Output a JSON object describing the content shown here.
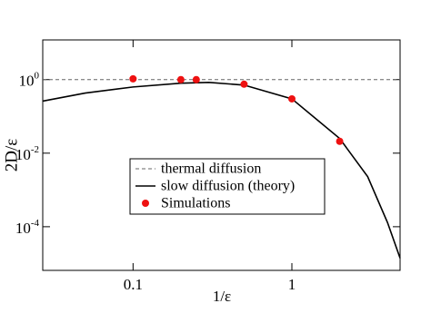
{
  "chart_data": {
    "type": "line",
    "xlabel": "1/ε",
    "ylabel": "2D/ε",
    "xscale": "log",
    "yscale": "log",
    "xlim": [
      0.027,
      4.8
    ],
    "ylim": [
      6.5e-06,
      12
    ],
    "xticks": [
      0.1,
      1
    ],
    "yticks": [
      {
        "value": 1,
        "label": "10^0"
      },
      {
        "value": 0.01,
        "label": "10^-2"
      },
      {
        "value": 0.0001,
        "label": "10^-4"
      }
    ],
    "series": [
      {
        "name": "thermal diffusion",
        "kind": "line",
        "dashed": true,
        "color": "#666666",
        "x": [
          0.027,
          4.8
        ],
        "values": [
          1,
          1
        ]
      },
      {
        "name": "slow diffusion (theory)",
        "kind": "line",
        "dashed": false,
        "color": "#000000",
        "x": [
          0.027,
          0.05,
          0.1,
          0.2,
          0.3,
          0.5,
          1,
          2,
          3,
          4,
          4.8
        ],
        "values": [
          0.26,
          0.43,
          0.63,
          0.8,
          0.84,
          0.71,
          0.3,
          0.025,
          0.0023,
          0.00013,
          1.4e-05
        ]
      },
      {
        "name": "Simulations",
        "kind": "scatter",
        "color": "#ee1111",
        "x": [
          0.1,
          0.2,
          0.25,
          0.5,
          1,
          2
        ],
        "values": [
          1.05,
          1.0,
          1.0,
          0.75,
          0.3,
          0.021
        ]
      }
    ]
  }
}
